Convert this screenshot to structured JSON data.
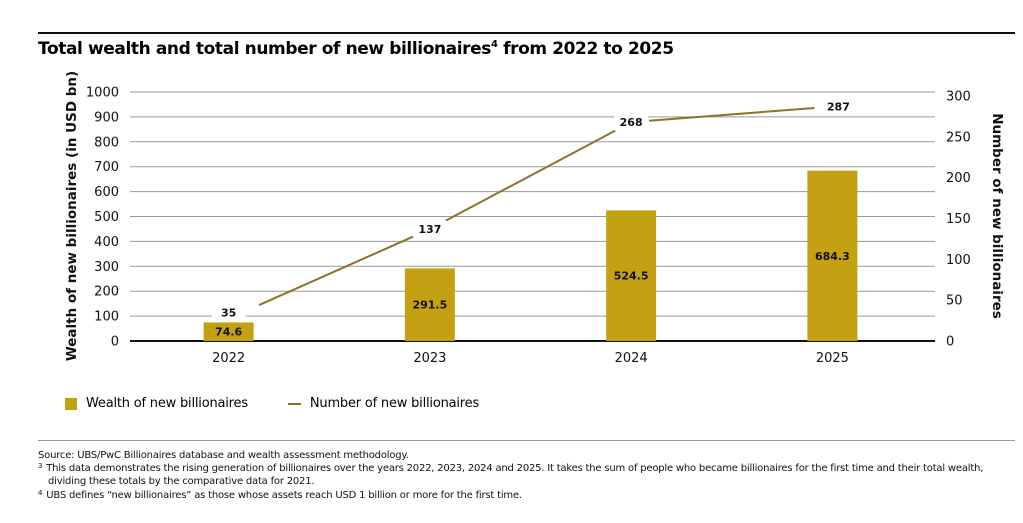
{
  "title": {
    "text": "Total wealth and total number of new billionaires",
    "superscript": "4",
    "suffix": " from 2022 to 2025"
  },
  "colors": {
    "bar": "#C4A013",
    "line": "#8C7424",
    "grid": "#9a9a9a",
    "baseline": "#111111"
  },
  "chart_data": {
    "type": "bar",
    "title": "Total wealth and total number of new billionaires from 2022 to 2025",
    "categories": [
      "2022",
      "2023",
      "2024",
      "2025"
    ],
    "series": [
      {
        "name": "Wealth of new billionaires",
        "type": "bar",
        "axis": "left",
        "values": [
          74.6,
          291.5,
          524.5,
          684.3
        ],
        "labels": [
          "74.6",
          "291.5",
          "524.5",
          "684.3"
        ]
      },
      {
        "name": "Number of new billionaires",
        "type": "line",
        "axis": "right",
        "values": [
          35,
          137,
          268,
          287
        ],
        "labels": [
          "35",
          "137",
          "268",
          "287"
        ]
      }
    ],
    "xlabel": "",
    "ylabel": "Wealth of new billionaires (in USD bn)",
    "ylabel_right": "Number of new billionaires",
    "ylim": [
      0,
      1000
    ],
    "ylim_right": [
      0,
      300
    ],
    "yticks": [
      "0",
      "100",
      "200",
      "300",
      "400",
      "500",
      "600",
      "700",
      "800",
      "900",
      "1000"
    ],
    "yticks_right": [
      "0",
      "50",
      "100",
      "150",
      "200",
      "250",
      "300"
    ],
    "grid": true,
    "legend_position": "bottom-left"
  },
  "legend": {
    "items": [
      {
        "label": "Wealth of new billionaires",
        "kind": "bar"
      },
      {
        "label": "Number of new billionaires",
        "kind": "line"
      }
    ]
  },
  "footnotes": {
    "source": "Source: UBS/PwC Billionaires database and wealth assessment methodology.",
    "notes": [
      {
        "marker": "3",
        "text": "This data demonstrates the rising generation of billionaires over the years 2022, 2023, 2024 and 2025. It takes the sum of people who became billionaires for the first time and their total wealth, dividing these totals by the comparative data for 2021."
      },
      {
        "marker": "4",
        "text": "UBS defines “new billionaires” as those whose assets reach USD 1 billion or more for the first time."
      }
    ]
  }
}
